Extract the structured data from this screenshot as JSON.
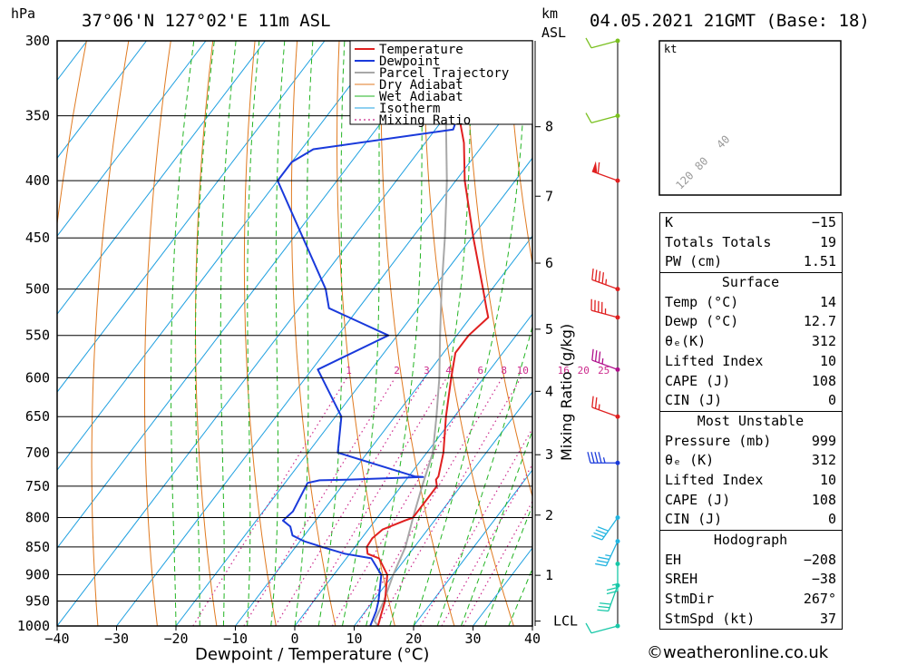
{
  "header": {
    "pressure_unit": "hPa",
    "location": "37°06'N 127°02'E 11m ASL",
    "km_label": "km",
    "asl_label": "ASL",
    "datetime": "04.05.2021 21GMT (Base: 18)"
  },
  "hodograph": {
    "unit_label": "kt",
    "ring_labels": [
      "40",
      "80",
      "120"
    ]
  },
  "indices": {
    "general": [
      {
        "label": "K",
        "value": "−15"
      },
      {
        "label": "Totals Totals",
        "value": "19"
      },
      {
        "label": "PW (cm)",
        "value": "1.51"
      }
    ],
    "surface": {
      "title": "Surface",
      "rows": [
        {
          "label": "Temp (°C)",
          "value": "14"
        },
        {
          "label": "Dewp (°C)",
          "value": "12.7"
        },
        {
          "label": "θₑ(K)",
          "value": "312"
        },
        {
          "label": "Lifted Index",
          "value": "10"
        },
        {
          "label": "CAPE (J)",
          "value": "108"
        },
        {
          "label": "CIN (J)",
          "value": "0"
        }
      ]
    },
    "most_unstable": {
      "title": "Most Unstable",
      "rows": [
        {
          "label": "Pressure (mb)",
          "value": "999"
        },
        {
          "label": "θₑ (K)",
          "value": "312"
        },
        {
          "label": "Lifted Index",
          "value": "10"
        },
        {
          "label": "CAPE (J)",
          "value": "108"
        },
        {
          "label": "CIN (J)",
          "value": "0"
        }
      ]
    },
    "hodograph_params": {
      "title": "Hodograph",
      "rows": [
        {
          "label": "EH",
          "value": "−208"
        },
        {
          "label": "SREH",
          "value": "−38"
        },
        {
          "label": "StmDir",
          "value": "267°"
        },
        {
          "label": "StmSpd (kt)",
          "value": "37"
        }
      ]
    }
  },
  "copyright": "©weatheronline.co.uk",
  "colors": {
    "temperature": "#e02020",
    "dewpoint": "#1a3adb",
    "parcel": "#a8a8a8",
    "dry_adiabat": "#e07a20",
    "wet_adiabat": "#22b422",
    "isotherm": "#1fa0e0",
    "mixing_ratio": "#cc2a8c"
  },
  "chart_data": {
    "type": "skew-t",
    "title": "37°06'N 127°02'E 11m ASL",
    "xlabel": "Dewpoint / Temperature (°C)",
    "ylabel": "hPa",
    "right_axis_label": "Mixing Ratio (g/kg)",
    "x_ticks": [
      "−40",
      "−30",
      "−20",
      "−10",
      "0",
      "10",
      "20",
      "30",
      "40"
    ],
    "x_tick_values": [
      -40,
      -30,
      -20,
      -10,
      0,
      10,
      20,
      30,
      40
    ],
    "pressure_levels": [
      300,
      350,
      400,
      450,
      500,
      550,
      600,
      650,
      700,
      750,
      800,
      850,
      900,
      950,
      1000
    ],
    "height_km_ticks": [
      {
        "label": "8",
        "p": 358
      },
      {
        "label": "7",
        "p": 413
      },
      {
        "label": "6",
        "p": 474
      },
      {
        "label": "5",
        "p": 543
      },
      {
        "label": "4",
        "p": 617
      },
      {
        "label": "3",
        "p": 703
      },
      {
        "label": "2",
        "p": 796
      },
      {
        "label": "1",
        "p": 901
      },
      {
        "label": "LCL",
        "p": 990
      }
    ],
    "mixing_ratio_labels": [
      "1",
      "2",
      "3",
      "4",
      "6",
      "8",
      "10",
      "16",
      "20",
      "25"
    ],
    "mixing_ratio_values": [
      1,
      2,
      3,
      4,
      6,
      8,
      10,
      16,
      20,
      25
    ],
    "legend": [
      "Temperature",
      "Dewpoint",
      "Parcel Trajectory",
      "Dry Adiabat",
      "Wet Adiabat",
      "Isotherm",
      "Mixing Ratio"
    ],
    "series": [
      {
        "name": "Temperature",
        "p": [
          1000,
          980,
          950,
          900,
          870,
          862,
          850,
          835,
          820,
          805,
          800,
          790,
          770,
          750,
          740,
          735,
          700,
          650,
          600,
          570,
          550,
          530,
          520,
          500,
          450,
          400,
          370,
          350,
          300
        ],
        "t": [
          14,
          13.2,
          12,
          9,
          5.5,
          3,
          2,
          1.8,
          2.4,
          5,
          6,
          6,
          6,
          6,
          5,
          5,
          2.8,
          -1.4,
          -5.5,
          -8,
          -8,
          -7,
          -8.5,
          -11.5,
          -19.7,
          -28.5,
          -33.5,
          -37.8,
          -49
        ]
      },
      {
        "name": "Dewpoint",
        "p": [
          1000,
          970,
          950,
          900,
          870,
          862,
          850,
          840,
          830,
          815,
          805,
          790,
          745,
          741,
          740,
          736,
          735,
          700,
          650,
          590,
          550,
          520,
          500,
          400,
          385,
          375,
          360,
          350,
          320,
          300
        ],
        "t": [
          12.7,
          11.8,
          10.9,
          8,
          4.2,
          -0.8,
          -5.5,
          -9.3,
          -12,
          -13.5,
          -15.5,
          -15,
          -16.2,
          -14.5,
          -10,
          2.5,
          1,
          -15,
          -19,
          -29,
          -21.5,
          -35,
          -38,
          -60,
          -60,
          -58,
          -37,
          -38,
          -44,
          -53
        ]
      },
      {
        "name": "Parcel Trajectory",
        "p": [
          1000,
          990,
          950,
          900,
          850,
          800,
          750,
          700,
          650,
          600,
          550,
          500,
          450,
          400,
          350,
          300
        ],
        "t": [
          14,
          12.8,
          11.8,
          10,
          8.5,
          6,
          3.5,
          1,
          -3,
          -7.5,
          -12.8,
          -18.5,
          -24.5,
          -31.5,
          -40,
          -50
        ]
      }
    ],
    "wind_barbs": [
      {
        "p": 300,
        "dir": 255,
        "kt": 10
      },
      {
        "p": 350,
        "dir": 255,
        "kt": 10
      },
      {
        "p": 400,
        "dir": 290,
        "kt": 60
      },
      {
        "p": 500,
        "dir": 290,
        "kt": 45
      },
      {
        "p": 530,
        "dir": 285,
        "kt": 45
      },
      {
        "p": 590,
        "dir": 290,
        "kt": 35
      },
      {
        "p": 650,
        "dir": 290,
        "kt": 25
      },
      {
        "p": 715,
        "dir": 270,
        "kt": 45
      },
      {
        "p": 800,
        "dir": 215,
        "kt": 40
      },
      {
        "p": 840,
        "dir": 205,
        "kt": 35
      },
      {
        "p": 880,
        "dir": 180,
        "kt": 25
      },
      {
        "p": 920,
        "dir": 200,
        "kt": 30
      },
      {
        "p": 1000,
        "dir": 255,
        "kt": 10
      }
    ],
    "hodograph_points_kt": [
      [
        -4,
        -6
      ],
      [
        -2,
        -4
      ],
      [
        4,
        -2
      ],
      [
        5,
        0
      ],
      [
        8,
        4
      ],
      [
        12,
        10
      ],
      [
        20,
        14
      ],
      [
        25,
        24
      ],
      [
        15,
        12
      ],
      [
        2,
        0
      ],
      [
        -5,
        -2
      ]
    ],
    "hodograph_range_kt": [
      -40,
      40
    ]
  }
}
